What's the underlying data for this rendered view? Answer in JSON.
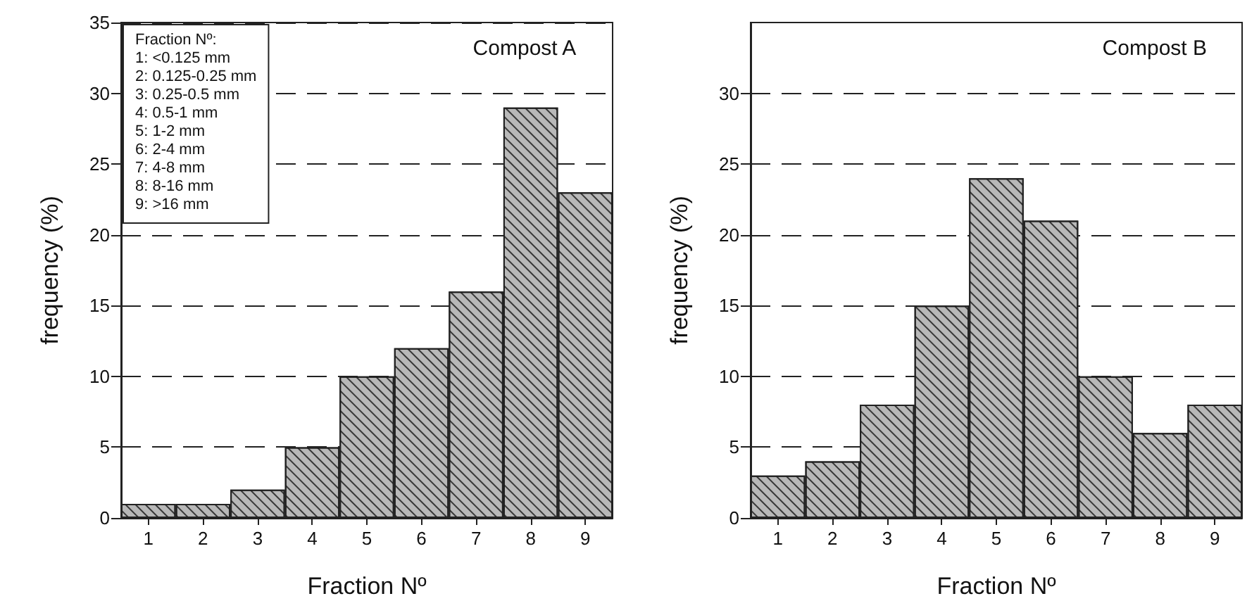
{
  "chart_data": [
    {
      "type": "bar",
      "title": "Compost A",
      "xlabel": "Fraction Nº",
      "ylabel": "frequency (%)",
      "annotations": [
        "Fraction Nº:\n1: <0.125 mm\n2: 0.125-0.25 mm\n3: 0.25-0.5 mm\n4: 0.5-1 mm\n5: 1-2 mm\n6: 2-4 mm\n7: 4-8 mm\n8: 8-16 mm\n9: >16 mm"
      ],
      "categories": [
        "1",
        "2",
        "3",
        "4",
        "5",
        "6",
        "7",
        "8",
        "9"
      ],
      "values": [
        1,
        1,
        2,
        5,
        10,
        12,
        16,
        29,
        23
      ],
      "color": "#b8b8b8",
      "ylim": [
        0,
        35
      ],
      "yticks": [
        0,
        5,
        10,
        15,
        20,
        25,
        30,
        35
      ],
      "grid": "y"
    },
    {
      "type": "bar",
      "title": "Compost B",
      "xlabel": "Fraction Nº",
      "ylabel": "frequency (%)",
      "categories": [
        "1",
        "2",
        "3",
        "4",
        "5",
        "6",
        "7",
        "8",
        "9"
      ],
      "values": [
        3,
        4,
        8,
        15,
        24,
        21,
        10,
        6,
        8
      ],
      "color": "#b8b8b8",
      "ylim": [
        0,
        35
      ],
      "yticks": [
        0,
        5,
        10,
        15,
        20,
        25,
        30
      ],
      "grid": "y"
    }
  ]
}
